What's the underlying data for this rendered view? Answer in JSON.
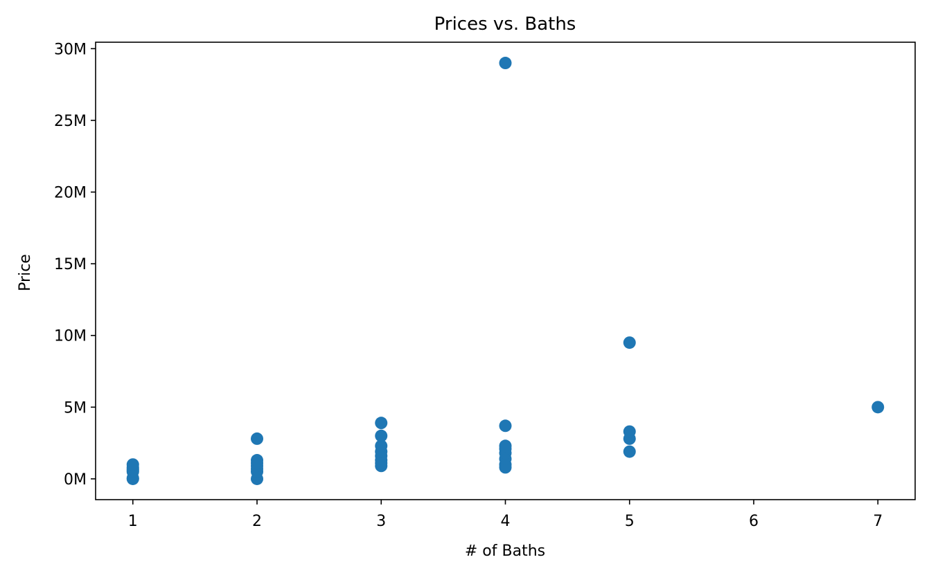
{
  "chart_data": {
    "type": "scatter",
    "title": "Prices vs. Baths",
    "xlabel": "# of Baths",
    "ylabel": "Price",
    "xlim": [
      0.7,
      7.3
    ],
    "ylim": [
      -1450000,
      30450000
    ],
    "xticks": [
      1,
      2,
      3,
      4,
      5,
      6,
      7
    ],
    "xtick_labels": [
      "1",
      "2",
      "3",
      "4",
      "5",
      "6",
      "7"
    ],
    "yticks": [
      0,
      5000000,
      10000000,
      15000000,
      20000000,
      25000000,
      30000000
    ],
    "ytick_labels": [
      "0M",
      "5M",
      "10M",
      "15M",
      "20M",
      "25M",
      "30M"
    ],
    "grid": false,
    "marker_color": "#1f77b4",
    "points": [
      {
        "x": 1,
        "y": 0
      },
      {
        "x": 1,
        "y": 50000
      },
      {
        "x": 1,
        "y": 500000
      },
      {
        "x": 1,
        "y": 600000
      },
      {
        "x": 1,
        "y": 700000
      },
      {
        "x": 1,
        "y": 800000
      },
      {
        "x": 1,
        "y": 1000000
      },
      {
        "x": 2,
        "y": 0
      },
      {
        "x": 2,
        "y": 500000
      },
      {
        "x": 2,
        "y": 700000
      },
      {
        "x": 2,
        "y": 900000
      },
      {
        "x": 2,
        "y": 1100000
      },
      {
        "x": 2,
        "y": 1300000
      },
      {
        "x": 2,
        "y": 2800000
      },
      {
        "x": 3,
        "y": 900000
      },
      {
        "x": 3,
        "y": 1100000
      },
      {
        "x": 3,
        "y": 1300000
      },
      {
        "x": 3,
        "y": 1600000
      },
      {
        "x": 3,
        "y": 1900000
      },
      {
        "x": 3,
        "y": 2300000
      },
      {
        "x": 3,
        "y": 3000000
      },
      {
        "x": 3,
        "y": 3900000
      },
      {
        "x": 4,
        "y": 800000
      },
      {
        "x": 4,
        "y": 1000000
      },
      {
        "x": 4,
        "y": 1400000
      },
      {
        "x": 4,
        "y": 1800000
      },
      {
        "x": 4,
        "y": 2100000
      },
      {
        "x": 4,
        "y": 2300000
      },
      {
        "x": 4,
        "y": 3700000
      },
      {
        "x": 4,
        "y": 29000000
      },
      {
        "x": 5,
        "y": 1900000
      },
      {
        "x": 5,
        "y": 2800000
      },
      {
        "x": 5,
        "y": 3300000
      },
      {
        "x": 5,
        "y": 9500000
      },
      {
        "x": 7,
        "y": 5000000
      }
    ]
  }
}
